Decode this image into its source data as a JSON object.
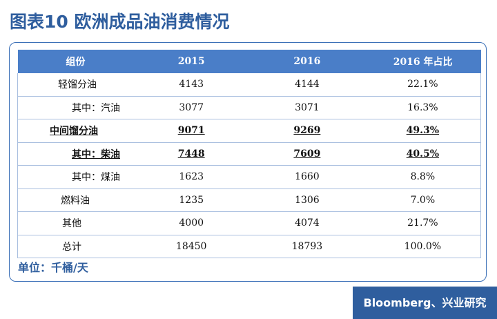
{
  "title": "图表10  欧洲成品油消费情况",
  "table": {
    "headers": [
      "组份",
      "2015",
      "2016",
      "2016 年占比"
    ],
    "rows": [
      {
        "label": "轻馏分油",
        "v2015": "4143",
        "v2016": "4144",
        "share": "22.1%"
      },
      {
        "label": "其中：汽油",
        "v2015": "3077",
        "v2016": "3071",
        "share": "16.3%"
      },
      {
        "label": "中间馏分油",
        "v2015": "9071",
        "v2016": "9269",
        "share": "49.3%"
      },
      {
        "label": "其中：柴油",
        "v2015": "7448",
        "v2016": "7609",
        "share": "40.5%"
      },
      {
        "label": "其中：煤油",
        "v2015": "1623",
        "v2016": "1660",
        "share": "8.8%"
      },
      {
        "label": "燃料油",
        "v2015": "1235",
        "v2016": "1306",
        "share": "7.0%"
      },
      {
        "label": "其他",
        "v2015": "4000",
        "v2016": "4074",
        "share": "21.7%"
      },
      {
        "label": "总计",
        "v2015": "18450",
        "v2016": "18793",
        "share": "100.0%"
      }
    ]
  },
  "unit_note": "单位：千桶/天",
  "source": "Bloomberg、兴业研究"
}
